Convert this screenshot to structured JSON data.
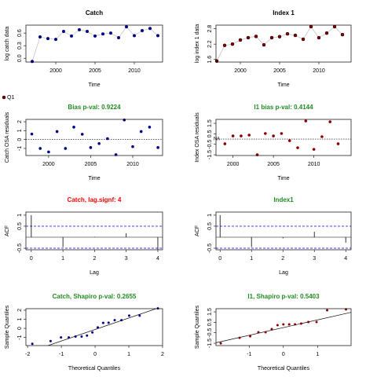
{
  "chart_data": [
    {
      "type": "line",
      "title": "Catch",
      "title_color": "#000000",
      "xlabel": "Time",
      "ylabel": "log catch data",
      "color": "#00008b",
      "line_color": "#bbbbbb",
      "x": [
        1997,
        1998,
        1999,
        2000,
        2001,
        2002,
        2003,
        2004,
        2005,
        2006,
        2007,
        2008,
        2009,
        2010,
        2011,
        2012,
        2013
      ],
      "values": [
        -0.075,
        0.51,
        0.47,
        0.45,
        0.64,
        0.53,
        0.68,
        0.64,
        0.53,
        0.58,
        0.6,
        0.49,
        0.75,
        0.54,
        0.66,
        0.71,
        0.54
      ],
      "xlim": [
        1996.2,
        2013.6
      ],
      "xticks": [
        2000,
        2005,
        2010
      ],
      "ylim": [
        -0.09,
        0.79
      ],
      "yticks": [
        {
          "value": 0,
          "label": "0.0"
        },
        0.3,
        0.6
      ]
    },
    {
      "type": "line",
      "title": "Index 1",
      "title_color": "#000000",
      "xlabel": "Time",
      "ylabel": "log index 1 data",
      "line_color": "#bbbbbb",
      "x": [
        1997,
        1998,
        1999,
        2000,
        2001,
        2002,
        2003,
        2004,
        2005,
        2006,
        2007,
        2008,
        2009,
        2010,
        2011,
        2012,
        2013
      ],
      "series": [
        {
          "name": "Q1",
          "color": "#8b0000",
          "values": [
            1.54,
            2.15,
            2.2,
            2.36,
            2.45,
            2.5,
            2.17,
            2.45,
            2.49,
            2.6,
            2.54,
            2.39,
            2.88,
            2.45,
            2.63,
            2.88,
            2.57
          ]
        }
      ],
      "xlim": [
        1996.9,
        2014.1
      ],
      "xticks": [
        2000,
        2005,
        2010
      ],
      "ylim": [
        1.5,
        2.94
      ],
      "yticks": [
        1.6,
        2.2,
        2.8
      ]
    },
    {
      "type": "scatter",
      "title": "Bias p-val: 0.9224",
      "title_color": "#228b22",
      "xlabel": "Time",
      "ylabel": "Catch OSA residuals",
      "color": "#00008b",
      "hline": 0,
      "x": [
        1998,
        1999,
        2000,
        2001,
        2002,
        2003,
        2004,
        2005,
        2006,
        2007,
        2008,
        2009,
        2010,
        2011,
        2012,
        2013
      ],
      "values": [
        0.62,
        -1,
        -1.4,
        0.9,
        -1,
        1.4,
        0.6,
        -0.9,
        -0.45,
        0.1,
        -1.7,
        2.2,
        -0.8,
        0.9,
        1.4,
        -0.9
      ],
      "xlim": [
        1997.3,
        2013.55
      ],
      "xticks": [
        2000,
        2005,
        2010
      ],
      "ylim": [
        -1.8,
        2.27
      ],
      "yticks": [
        -1,
        0,
        1,
        2
      ]
    },
    {
      "type": "scatter",
      "title": "I1 bias p-val: 0.4144",
      "title_color": "#228b22",
      "xlabel": "Time",
      "ylabel": "Index OSA residuals",
      "color": "#8b0000",
      "hline": 0,
      "x": [
        1998,
        1999,
        2000,
        2001,
        2002,
        2003,
        2004,
        2005,
        2006,
        2007,
        2008,
        2009,
        2010,
        2011,
        2012,
        2013
      ],
      "values": [
        null,
        -0.45,
        0.3,
        0.3,
        0.38,
        -1.5,
        0.53,
        0.3,
        0.53,
        -0.15,
        -0.83,
        1.73,
        -0.98,
        0.23,
        1.65,
        -0.45
      ],
      "annotations": [
        {
          "text": "NA",
          "x": 1998,
          "y": 0
        }
      ],
      "xlim": [
        1997.9,
        2014.6
      ],
      "xticks": [
        2000,
        2005,
        2010
      ],
      "ylim": [
        -1.57,
        1.88
      ],
      "yticks": [
        -1.5,
        -0.5,
        0.5,
        1.5
      ]
    },
    {
      "type": "acf",
      "title": "Catch, lag.signf: 4",
      "title_color": "#ff0000",
      "xlabel": "Lag",
      "ylabel": "ACF",
      "color": "#000000",
      "ci_color": "#0000ff",
      "x": [
        0,
        1,
        2,
        3,
        4
      ],
      "values": [
        1,
        -0.45,
        0.02,
        0.18,
        -0.56
      ],
      "ci": [
        -0.5,
        0.5
      ],
      "xlim": [
        -0.17,
        4.15
      ],
      "xticks": [
        0,
        1,
        2,
        3,
        4
      ],
      "ylim": [
        -0.57,
        1.14
      ],
      "yticks": [
        -0.5,
        0.5,
        1
      ]
    },
    {
      "type": "acf",
      "title": "Index1",
      "title_color": "#228b22",
      "xlabel": "Lag",
      "ylabel": "ACF",
      "color": "#000000",
      "ci_color": "#0000ff",
      "x": [
        0,
        1,
        2,
        3,
        4
      ],
      "values": [
        1,
        -0.45,
        -0.05,
        0.25,
        -0.25
      ],
      "ci": [
        -0.5,
        0.5
      ],
      "xlim": [
        -0.13,
        4.17
      ],
      "xticks": [
        0,
        1,
        2,
        3,
        4
      ],
      "ylim": [
        -0.57,
        1.14
      ],
      "yticks": [
        -0.5,
        0.5,
        1
      ]
    },
    {
      "type": "qq",
      "title": "Catch, Shapiro p-val: 0.2655",
      "title_color": "#228b22",
      "xlabel": "Theoretical Quantiles",
      "ylabel": "Sample Quantiles",
      "color": "#00008b",
      "x": [
        -1.86,
        -1.32,
        -1.01,
        -0.78,
        -0.58,
        -0.4,
        -0.24,
        -0.08,
        0.08,
        0.24,
        0.4,
        0.58,
        0.78,
        1.01,
        1.32,
        1.86
      ],
      "values": [
        -1.7,
        -1.4,
        -1,
        -1,
        -0.9,
        -0.9,
        -0.8,
        -0.45,
        0.1,
        0.6,
        0.62,
        0.9,
        0.9,
        1.4,
        1.4,
        2.2
      ],
      "line_x": [
        -2.05,
        2.0
      ],
      "line_y": [
        -2.73,
        2.41
      ],
      "xlim": [
        -2.05,
        2.0
      ],
      "xticks": [
        -2,
        -1,
        0,
        1,
        2
      ],
      "ylim": [
        -1.9,
        2.17
      ],
      "yticks": [
        -1,
        0,
        1,
        2
      ]
    },
    {
      "type": "qq",
      "title": "I1, Shapiro p-val: 0.5403",
      "title_color": "#228b22",
      "xlabel": "Theoretical Quantiles",
      "ylabel": "Sample Quantiles",
      "color": "#8b0000",
      "x": [
        -1.83,
        -1.28,
        -0.97,
        -0.73,
        -0.52,
        -0.34,
        -0.17,
        0,
        0.17,
        0.34,
        0.52,
        0.73,
        0.97,
        1.28,
        1.83
      ],
      "values": [
        -1.5,
        -0.98,
        -0.83,
        -0.45,
        -0.45,
        -0.15,
        0.23,
        0.3,
        0.3,
        0.3,
        0.38,
        0.53,
        0.53,
        1.65,
        1.73
      ],
      "line_x": [
        -1.97,
        1.98
      ],
      "line_y": [
        -1.45,
        1.45
      ],
      "xlim": [
        -1.97,
        1.98
      ],
      "xticks": [
        -1,
        0,
        1
      ],
      "ylim": [
        -1.72,
        1.8
      ],
      "yticks": [
        -1.5,
        -0.5,
        0.5,
        1.5
      ]
    }
  ]
}
